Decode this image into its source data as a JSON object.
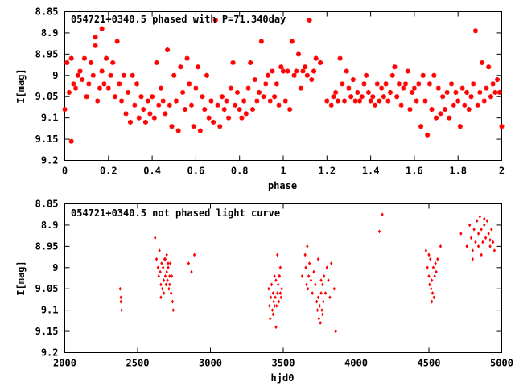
{
  "chart_data": [
    {
      "type": "scatter",
      "title": "054721+0340.5 phased with P=71.340day",
      "xlabel": "phase",
      "ylabel": "I[mag]",
      "xlim": [
        0,
        2
      ],
      "ylim": [
        8.85,
        9.2
      ],
      "y_inverted": true,
      "x_ticks": [
        "0",
        "0.2",
        "0.4",
        "0.6",
        "0.8",
        "1",
        "1.2",
        "1.4",
        "1.6",
        "1.8",
        "2"
      ],
      "y_ticks": [
        "8.85",
        "8.9",
        "8.95",
        "9",
        "9.05",
        "9.1",
        "9.15",
        "9.2"
      ],
      "marker": "star",
      "color": "#ff0000",
      "points": [
        [
          0.0,
          9.08
        ],
        [
          0.01,
          8.97
        ],
        [
          0.02,
          9.04
        ],
        [
          0.03,
          9.155
        ],
        [
          0.03,
          8.96
        ],
        [
          0.04,
          9.02
        ],
        [
          0.05,
          9.03
        ],
        [
          0.06,
          9.0
        ],
        [
          0.07,
          8.99
        ],
        [
          0.08,
          9.01
        ],
        [
          0.09,
          8.96
        ],
        [
          0.1,
          9.05
        ],
        [
          0.11,
          9.02
        ],
        [
          0.12,
          8.97
        ],
        [
          0.13,
          9.0
        ],
        [
          0.14,
          8.91
        ],
        [
          0.14,
          8.93
        ],
        [
          0.15,
          9.06
        ],
        [
          0.16,
          9.03
        ],
        [
          0.17,
          8.89
        ],
        [
          0.17,
          8.99
        ],
        [
          0.18,
          9.02
        ],
        [
          0.19,
          8.96
        ],
        [
          0.2,
          9.03
        ],
        [
          0.21,
          9.0
        ],
        [
          0.22,
          8.97
        ],
        [
          0.23,
          9.05
        ],
        [
          0.24,
          8.92
        ],
        [
          0.25,
          9.02
        ],
        [
          0.26,
          9.06
        ],
        [
          0.27,
          9.0
        ],
        [
          0.28,
          9.09
        ],
        [
          0.29,
          9.04
        ],
        [
          0.3,
          9.11
        ],
        [
          0.31,
          9.0
        ],
        [
          0.32,
          9.07
        ],
        [
          0.33,
          9.02
        ],
        [
          0.34,
          9.1
        ],
        [
          0.35,
          9.05
        ],
        [
          0.36,
          9.08
        ],
        [
          0.37,
          9.11
        ],
        [
          0.38,
          9.06
        ],
        [
          0.39,
          9.09
        ],
        [
          0.4,
          9.05
        ],
        [
          0.41,
          9.1
        ],
        [
          0.42,
          8.97
        ],
        [
          0.43,
          9.07
        ],
        [
          0.44,
          9.03
        ],
        [
          0.45,
          9.06
        ],
        [
          0.46,
          9.09
        ],
        [
          0.47,
          8.94
        ],
        [
          0.48,
          9.07
        ],
        [
          0.49,
          9.12
        ],
        [
          0.5,
          9.0
        ],
        [
          0.51,
          9.06
        ],
        [
          0.52,
          9.13
        ],
        [
          0.53,
          8.98
        ],
        [
          0.54,
          9.04
        ],
        [
          0.55,
          9.08
        ],
        [
          0.56,
          8.96
        ],
        [
          0.57,
          9.02
        ],
        [
          0.58,
          9.07
        ],
        [
          0.59,
          9.12
        ],
        [
          0.6,
          9.03
        ],
        [
          0.61,
          8.98
        ],
        [
          0.62,
          9.13
        ],
        [
          0.63,
          9.05
        ],
        [
          0.64,
          9.08
        ],
        [
          0.65,
          9.0
        ],
        [
          0.66,
          9.1
        ],
        [
          0.67,
          9.06
        ],
        [
          0.68,
          9.11
        ],
        [
          0.69,
          8.87
        ],
        [
          0.7,
          9.07
        ],
        [
          0.71,
          9.12
        ],
        [
          0.72,
          9.05
        ],
        [
          0.73,
          9.08
        ],
        [
          0.74,
          9.06
        ],
        [
          0.75,
          9.1
        ],
        [
          0.76,
          9.03
        ],
        [
          0.77,
          8.97
        ],
        [
          0.78,
          9.07
        ],
        [
          0.79,
          9.04
        ],
        [
          0.8,
          9.08
        ],
        [
          0.81,
          9.1
        ],
        [
          0.82,
          9.06
        ],
        [
          0.83,
          9.09
        ],
        [
          0.84,
          9.03
        ],
        [
          0.85,
          8.97
        ],
        [
          0.86,
          9.08
        ],
        [
          0.87,
          9.01
        ],
        [
          0.88,
          9.06
        ],
        [
          0.89,
          9.04
        ],
        [
          0.9,
          8.92
        ],
        [
          0.91,
          9.05
        ],
        [
          0.92,
          9.02
        ],
        [
          0.93,
          9.0
        ],
        [
          0.94,
          9.06
        ],
        [
          0.95,
          8.99
        ],
        [
          0.96,
          9.05
        ],
        [
          0.97,
          9.02
        ],
        [
          0.98,
          9.07
        ],
        [
          0.99,
          8.98
        ],
        [
          1.0,
          8.99
        ],
        [
          1.01,
          9.06
        ],
        [
          1.02,
          8.99
        ],
        [
          1.03,
          9.08
        ],
        [
          1.04,
          8.92
        ],
        [
          1.05,
          9.0
        ],
        [
          1.06,
          8.99
        ],
        [
          1.07,
          8.95
        ],
        [
          1.08,
          9.03
        ],
        [
          1.09,
          8.99
        ],
        [
          1.1,
          8.98
        ],
        [
          1.11,
          9.0
        ],
        [
          1.12,
          8.87
        ],
        [
          1.13,
          9.01
        ],
        [
          1.14,
          8.99
        ],
        [
          1.15,
          8.96
        ],
        [
          1.17,
          8.97
        ],
        [
          1.2,
          9.06
        ],
        [
          1.22,
          9.07
        ],
        [
          1.23,
          9.05
        ],
        [
          1.24,
          9.04
        ],
        [
          1.25,
          9.06
        ],
        [
          1.26,
          8.96
        ],
        [
          1.27,
          9.02
        ],
        [
          1.28,
          9.06
        ],
        [
          1.29,
          8.99
        ],
        [
          1.3,
          9.03
        ],
        [
          1.31,
          9.05
        ],
        [
          1.32,
          9.01
        ],
        [
          1.33,
          9.06
        ],
        [
          1.34,
          9.04
        ],
        [
          1.35,
          9.06
        ],
        [
          1.36,
          9.05
        ],
        [
          1.37,
          9.02
        ],
        [
          1.38,
          9.0
        ],
        [
          1.39,
          9.04
        ],
        [
          1.4,
          9.06
        ],
        [
          1.41,
          9.05
        ],
        [
          1.42,
          9.07
        ],
        [
          1.43,
          9.02
        ],
        [
          1.44,
          9.06
        ],
        [
          1.45,
          9.03
        ],
        [
          1.46,
          9.05
        ],
        [
          1.47,
          9.02
        ],
        [
          1.48,
          9.06
        ],
        [
          1.49,
          9.04
        ],
        [
          1.5,
          9.0
        ],
        [
          1.51,
          8.98
        ],
        [
          1.52,
          9.05
        ],
        [
          1.53,
          9.02
        ],
        [
          1.54,
          9.07
        ],
        [
          1.55,
          9.03
        ],
        [
          1.56,
          9.02
        ],
        [
          1.57,
          8.99
        ],
        [
          1.58,
          9.08
        ],
        [
          1.59,
          9.04
        ],
        [
          1.6,
          9.03
        ],
        [
          1.61,
          9.06
        ],
        [
          1.62,
          9.02
        ],
        [
          1.63,
          9.12
        ],
        [
          1.64,
          9.0
        ],
        [
          1.65,
          9.06
        ],
        [
          1.66,
          9.14
        ],
        [
          1.67,
          9.02
        ],
        [
          1.68,
          9.08
        ],
        [
          1.69,
          9.0
        ],
        [
          1.7,
          9.1
        ],
        [
          1.71,
          9.03
        ],
        [
          1.72,
          9.09
        ],
        [
          1.73,
          9.05
        ],
        [
          1.74,
          9.08
        ],
        [
          1.75,
          9.04
        ],
        [
          1.76,
          9.1
        ],
        [
          1.77,
          9.02
        ],
        [
          1.78,
          9.07
        ],
        [
          1.79,
          9.04
        ],
        [
          1.8,
          9.06
        ],
        [
          1.81,
          9.12
        ],
        [
          1.82,
          9.03
        ],
        [
          1.83,
          9.07
        ],
        [
          1.84,
          9.04
        ],
        [
          1.85,
          9.08
        ],
        [
          1.86,
          9.05
        ],
        [
          1.87,
          9.02
        ],
        [
          1.88,
          8.895
        ],
        [
          1.89,
          9.07
        ],
        [
          1.9,
          9.04
        ],
        [
          1.91,
          8.97
        ],
        [
          1.92,
          9.06
        ],
        [
          1.93,
          9.03
        ],
        [
          1.94,
          8.98
        ],
        [
          1.95,
          9.05
        ],
        [
          1.96,
          9.02
        ],
        [
          1.97,
          9.04
        ],
        [
          1.98,
          9.01
        ],
        [
          1.99,
          9.04
        ],
        [
          2.0,
          9.12
        ]
      ]
    },
    {
      "type": "scatter",
      "title": "054721+0340.5 not phased light curve",
      "xlabel": "hjd0",
      "ylabel": "I[mag]",
      "xlim": [
        2000,
        5000
      ],
      "ylim": [
        8.85,
        9.2
      ],
      "y_inverted": true,
      "x_ticks": [
        "2000",
        "2500",
        "3000",
        "3500",
        "4000",
        "4500",
        "5000"
      ],
      "y_ticks": [
        "8.85",
        "8.9",
        "8.95",
        "9",
        "9.05",
        "9.1",
        "9.15",
        "9.2"
      ],
      "marker": "diamond",
      "color": "#ff0000",
      "points": [
        [
          2380,
          9.05
        ],
        [
          2385,
          9.07
        ],
        [
          2390,
          9.1
        ],
        [
          2385,
          9.08
        ],
        [
          2620,
          8.93
        ],
        [
          2630,
          8.98
        ],
        [
          2640,
          9.0
        ],
        [
          2645,
          9.02
        ],
        [
          2650,
          8.96
        ],
        [
          2655,
          9.01
        ],
        [
          2660,
          9.04
        ],
        [
          2665,
          8.99
        ],
        [
          2670,
          9.05
        ],
        [
          2675,
          9.0
        ],
        [
          2680,
          9.06
        ],
        [
          2685,
          8.98
        ],
        [
          2690,
          9.02
        ],
        [
          2695,
          9.04
        ],
        [
          2700,
          8.97
        ],
        [
          2705,
          9.03
        ],
        [
          2710,
          9.0
        ],
        [
          2715,
          9.05
        ],
        [
          2720,
          9.02
        ],
        [
          2725,
          8.99
        ],
        [
          2730,
          9.06
        ],
        [
          2735,
          9.02
        ],
        [
          2740,
          9.08
        ],
        [
          2745,
          9.1
        ],
        [
          2660,
          9.07
        ],
        [
          2700,
          9.01
        ],
        [
          2690,
          8.98
        ],
        [
          2720,
          9.04
        ],
        [
          2680,
          9.03
        ],
        [
          2710,
          8.99
        ],
        [
          2850,
          8.99
        ],
        [
          2870,
          9.01
        ],
        [
          2890,
          8.97
        ],
        [
          3400,
          9.05
        ],
        [
          3405,
          9.09
        ],
        [
          3410,
          9.12
        ],
        [
          3415,
          9.07
        ],
        [
          3420,
          9.04
        ],
        [
          3425,
          9.1
        ],
        [
          3430,
          9.06
        ],
        [
          3435,
          9.08
        ],
        [
          3440,
          9.02
        ],
        [
          3445,
          9.07
        ],
        [
          3450,
          9.03
        ],
        [
          3455,
          9.09
        ],
        [
          3460,
          9.06
        ],
        [
          3465,
          9.04
        ],
        [
          3470,
          9.08
        ],
        [
          3475,
          9.02
        ],
        [
          3480,
          9.06
        ],
        [
          3485,
          9.07
        ],
        [
          3490,
          9.05
        ],
        [
          3470,
          9.02
        ],
        [
          3450,
          9.14
        ],
        [
          3460,
          8.97
        ],
        [
          3480,
          9.0
        ],
        [
          3440,
          9.09
        ],
        [
          3430,
          9.11
        ],
        [
          3630,
          9.02
        ],
        [
          3650,
          8.97
        ],
        [
          3655,
          9.0
        ],
        [
          3660,
          9.04
        ],
        [
          3665,
          8.95
        ],
        [
          3670,
          9.05
        ],
        [
          3675,
          9.02
        ],
        [
          3680,
          8.99
        ],
        [
          3690,
          9.03
        ],
        [
          3700,
          9.06
        ],
        [
          3710,
          9.01
        ],
        [
          3720,
          9.04
        ],
        [
          3730,
          9.08
        ],
        [
          3735,
          9.1
        ],
        [
          3740,
          9.07
        ],
        [
          3745,
          9.12
        ],
        [
          3750,
          9.09
        ],
        [
          3755,
          9.13
        ],
        [
          3760,
          9.06
        ],
        [
          3765,
          9.1
        ],
        [
          3770,
          9.04
        ],
        [
          3775,
          9.08
        ],
        [
          3780,
          9.02
        ],
        [
          3790,
          9.06
        ],
        [
          3800,
          9.0
        ],
        [
          3810,
          9.03
        ],
        [
          3820,
          9.07
        ],
        [
          3830,
          8.99
        ],
        [
          3850,
          9.05
        ],
        [
          3860,
          9.15
        ],
        [
          3740,
          8.98
        ],
        [
          3760,
          9.03
        ],
        [
          3770,
          9.11
        ],
        [
          4160,
          8.915
        ],
        [
          4180,
          8.875
        ],
        [
          4480,
          8.96
        ],
        [
          4490,
          9.0
        ],
        [
          4500,
          9.02
        ],
        [
          4505,
          9.04
        ],
        [
          4510,
          8.98
        ],
        [
          4515,
          9.05
        ],
        [
          4520,
          9.03
        ],
        [
          4525,
          9.06
        ],
        [
          4530,
          9.0
        ],
        [
          4535,
          9.07
        ],
        [
          4540,
          9.02
        ],
        [
          4545,
          8.99
        ],
        [
          4550,
          9.01
        ],
        [
          4560,
          8.98
        ],
        [
          4580,
          8.95
        ],
        [
          4520,
          9.08
        ],
        [
          4500,
          8.97
        ],
        [
          4720,
          8.92
        ],
        [
          4760,
          8.95
        ],
        [
          4780,
          8.9
        ],
        [
          4790,
          8.93
        ],
        [
          4800,
          8.96
        ],
        [
          4810,
          8.91
        ],
        [
          4820,
          8.94
        ],
        [
          4830,
          8.89
        ],
        [
          4840,
          8.92
        ],
        [
          4850,
          8.88
        ],
        [
          4860,
          8.91
        ],
        [
          4870,
          8.94
        ],
        [
          4880,
          8.9
        ],
        [
          4890,
          8.93
        ],
        [
          4900,
          8.89
        ],
        [
          4910,
          8.92
        ],
        [
          4920,
          8.95
        ],
        [
          4930,
          8.91
        ],
        [
          4940,
          8.94
        ],
        [
          4950,
          8.96
        ],
        [
          4800,
          8.98
        ],
        [
          4860,
          8.97
        ],
        [
          4880,
          8.885
        ],
        [
          4920,
          8.935
        ],
        [
          4840,
          8.95
        ]
      ]
    }
  ]
}
